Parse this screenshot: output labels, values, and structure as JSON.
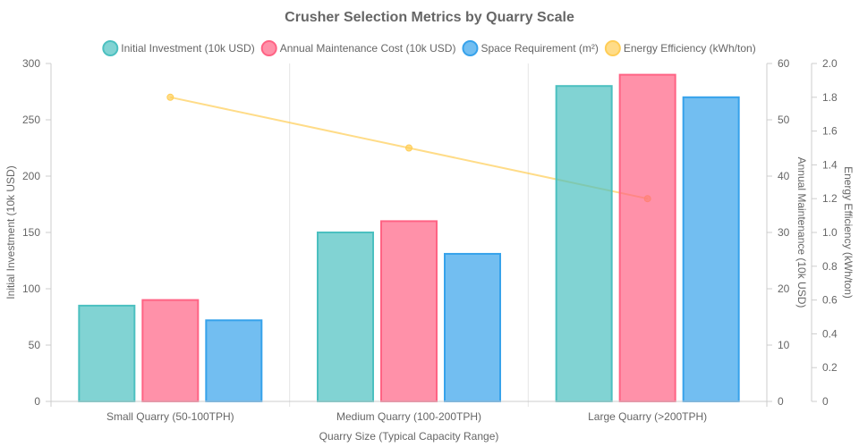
{
  "chart_data": {
    "type": "bar",
    "title": "Crusher Selection Metrics by Quarry Scale",
    "xlabel": "Quarry Size (Typical Capacity Range)",
    "categories": [
      "Small Quarry (50-100TPH)",
      "Medium Quarry (100-200TPH)",
      "Large Quarry (>200TPH)"
    ],
    "axes": {
      "y_left": {
        "label": "Initial Investment (10k USD)",
        "range": [
          0,
          300
        ],
        "ticks": [
          0,
          50,
          100,
          150,
          200,
          250,
          300
        ]
      },
      "y_right1": {
        "label": "Annual Maintenance (10k USD)",
        "range": [
          0,
          60
        ],
        "ticks": [
          0,
          10,
          20,
          30,
          40,
          50,
          60
        ]
      },
      "y_right2": {
        "label": "Energy Efficiency (kWh/ton)",
        "range": [
          0,
          2.0
        ],
        "ticks": [
          "0",
          "0.2",
          "0.4",
          "0.6",
          "0.8",
          "1.0",
          "1.2",
          "1.4",
          "1.6",
          "1.8",
          "2.0"
        ]
      }
    },
    "legend_position": "top",
    "grid": "vertical category separators",
    "series": [
      {
        "name": "Initial Investment (10k USD)",
        "type": "bar",
        "axis": "y_left",
        "values": [
          85,
          150,
          280
        ],
        "color": "#4BC0C0",
        "fill": "rgba(75,192,192,0.7)"
      },
      {
        "name": "Annual Maintenance Cost (10k USD)",
        "type": "bar",
        "axis": "y_right1",
        "values": [
          18,
          32,
          58
        ],
        "color": "#FF6384",
        "fill": "rgba(255,99,132,0.7)"
      },
      {
        "name": "Space Requirement (m²)",
        "type": "bar",
        "axis": "y_left",
        "values": [
          72,
          131,
          270
        ],
        "color": "#36A2EB",
        "fill": "rgba(54,162,235,0.7)"
      },
      {
        "name": "Energy Efficiency (kWh/ton)",
        "type": "line",
        "axis": "y_right2",
        "values": [
          1.8,
          1.5,
          1.2
        ],
        "color": "#FFCD56",
        "fill": "rgba(255,205,86,0.7)"
      }
    ]
  }
}
